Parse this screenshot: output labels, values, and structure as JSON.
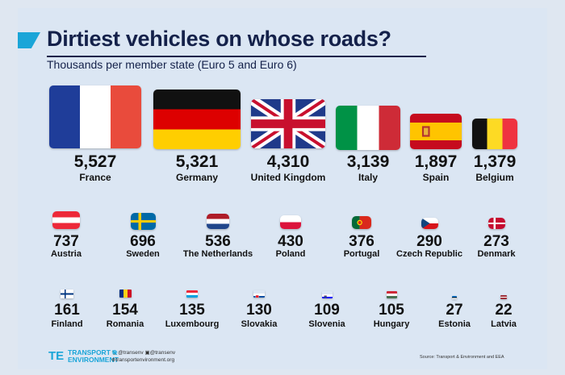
{
  "header": {
    "title": "Dirtiest vehicles on whose roads?",
    "subtitle": "Thousands per member state (Euro 5 and Euro 6)"
  },
  "chart_data": {
    "type": "pictogram",
    "title": "Dirtiest vehicles on whose roads?",
    "subtitle": "Thousands per member state (Euro 5 and Euro 6)",
    "unit": "thousands",
    "categories": [
      "France",
      "Germany",
      "United Kingdom",
      "Italy",
      "Spain",
      "Belgium",
      "Austria",
      "Sweden",
      "The Netherlands",
      "Poland",
      "Portugal",
      "Czech Republic",
      "Denmark",
      "Finland",
      "Romania",
      "Luxembourg",
      "Slovakia",
      "Slovenia",
      "Hungary",
      "Estonia",
      "Latvia"
    ],
    "values": [
      5527,
      5321,
      4310,
      3139,
      1897,
      1379,
      737,
      696,
      536,
      430,
      376,
      290,
      273,
      161,
      154,
      135,
      130,
      109,
      105,
      27,
      22
    ],
    "labels": [
      "5,527",
      "5,321",
      "4,310",
      "3,139",
      "1,897",
      "1,379",
      "737",
      "696",
      "536",
      "430",
      "376",
      "290",
      "273",
      "161",
      "154",
      "135",
      "130",
      "109",
      "105",
      "27",
      "22"
    ],
    "flags": [
      "fr",
      "de",
      "uk",
      "it",
      "es",
      "be",
      "at",
      "se",
      "nl",
      "pl",
      "pt",
      "cz",
      "dk",
      "fi",
      "ro",
      "lu",
      "sk",
      "si",
      "hu",
      "ee",
      "lv"
    ]
  },
  "footer": {
    "logo_mark": "TE",
    "logo_line1": "TRANSPORT &",
    "logo_line2": "ENVIRONMENT",
    "twitter": "@transenv",
    "facebook": "@transenv",
    "website": "transportenvironment.org",
    "source": "Source: Transport & Environment and EEA"
  },
  "colors": {
    "navy": "#14214a",
    "accent": "#1aa5d8",
    "background": "#dbe6f3"
  }
}
